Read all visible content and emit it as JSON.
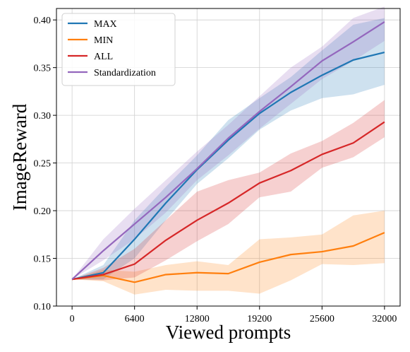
{
  "chart_data": {
    "type": "line",
    "title": "",
    "xlabel": "Viewed prompts",
    "ylabel": "ImageReward",
    "xlim": [
      -1600,
      33600
    ],
    "ylim": [
      0.1,
      0.412
    ],
    "xticks": [
      0,
      6400,
      12800,
      19200,
      25600,
      32000
    ],
    "xtick_labels": [
      "0",
      "6400",
      "12800",
      "19200",
      "25600",
      "32000"
    ],
    "yticks": [
      0.1,
      0.15,
      0.2,
      0.25,
      0.3,
      0.35,
      0.4
    ],
    "ytick_labels": [
      "0.10",
      "0.15",
      "0.20",
      "0.25",
      "0.30",
      "0.35",
      "0.40"
    ],
    "grid": true,
    "legend_position": "top-left",
    "x": [
      0,
      3200,
      6400,
      9600,
      12800,
      16000,
      19200,
      22400,
      25600,
      28800,
      32000
    ],
    "series": [
      {
        "name": "MAX",
        "color": "#1f77b4",
        "values": [
          0.128,
          0.135,
          0.17,
          0.208,
          0.243,
          0.274,
          0.302,
          0.324,
          0.342,
          0.358,
          0.366
        ],
        "lower": [
          0.128,
          0.128,
          0.15,
          0.19,
          0.228,
          0.255,
          0.285,
          0.305,
          0.318,
          0.322,
          0.332
        ],
        "upper": [
          0.128,
          0.143,
          0.19,
          0.225,
          0.258,
          0.295,
          0.318,
          0.34,
          0.368,
          0.395,
          0.402
        ]
      },
      {
        "name": "MIN",
        "color": "#ff7f0e",
        "values": [
          0.128,
          0.132,
          0.125,
          0.133,
          0.135,
          0.134,
          0.146,
          0.154,
          0.157,
          0.163,
          0.177
        ],
        "lower": [
          0.128,
          0.126,
          0.112,
          0.117,
          0.116,
          0.116,
          0.113,
          0.127,
          0.144,
          0.143,
          0.145
        ],
        "upper": [
          0.128,
          0.138,
          0.136,
          0.143,
          0.147,
          0.143,
          0.17,
          0.172,
          0.175,
          0.195,
          0.2
        ]
      },
      {
        "name": "ALL",
        "color": "#d62728",
        "values": [
          0.128,
          0.133,
          0.144,
          0.169,
          0.19,
          0.208,
          0.229,
          0.242,
          0.259,
          0.271,
          0.293
        ],
        "lower": [
          0.128,
          0.127,
          0.13,
          0.148,
          0.168,
          0.186,
          0.214,
          0.22,
          0.245,
          0.256,
          0.277
        ],
        "upper": [
          0.128,
          0.14,
          0.16,
          0.19,
          0.22,
          0.232,
          0.24,
          0.26,
          0.273,
          0.292,
          0.316
        ]
      },
      {
        "name": "Standardization",
        "color": "#9467bd",
        "values": [
          0.128,
          0.158,
          0.186,
          0.214,
          0.244,
          0.276,
          0.304,
          0.33,
          0.357,
          0.377,
          0.398
        ],
        "lower": [
          0.128,
          0.148,
          0.17,
          0.198,
          0.232,
          0.258,
          0.286,
          0.312,
          0.338,
          0.357,
          0.378
        ],
        "upper": [
          0.128,
          0.17,
          0.202,
          0.232,
          0.262,
          0.29,
          0.32,
          0.35,
          0.372,
          0.402,
          0.414
        ]
      }
    ]
  }
}
